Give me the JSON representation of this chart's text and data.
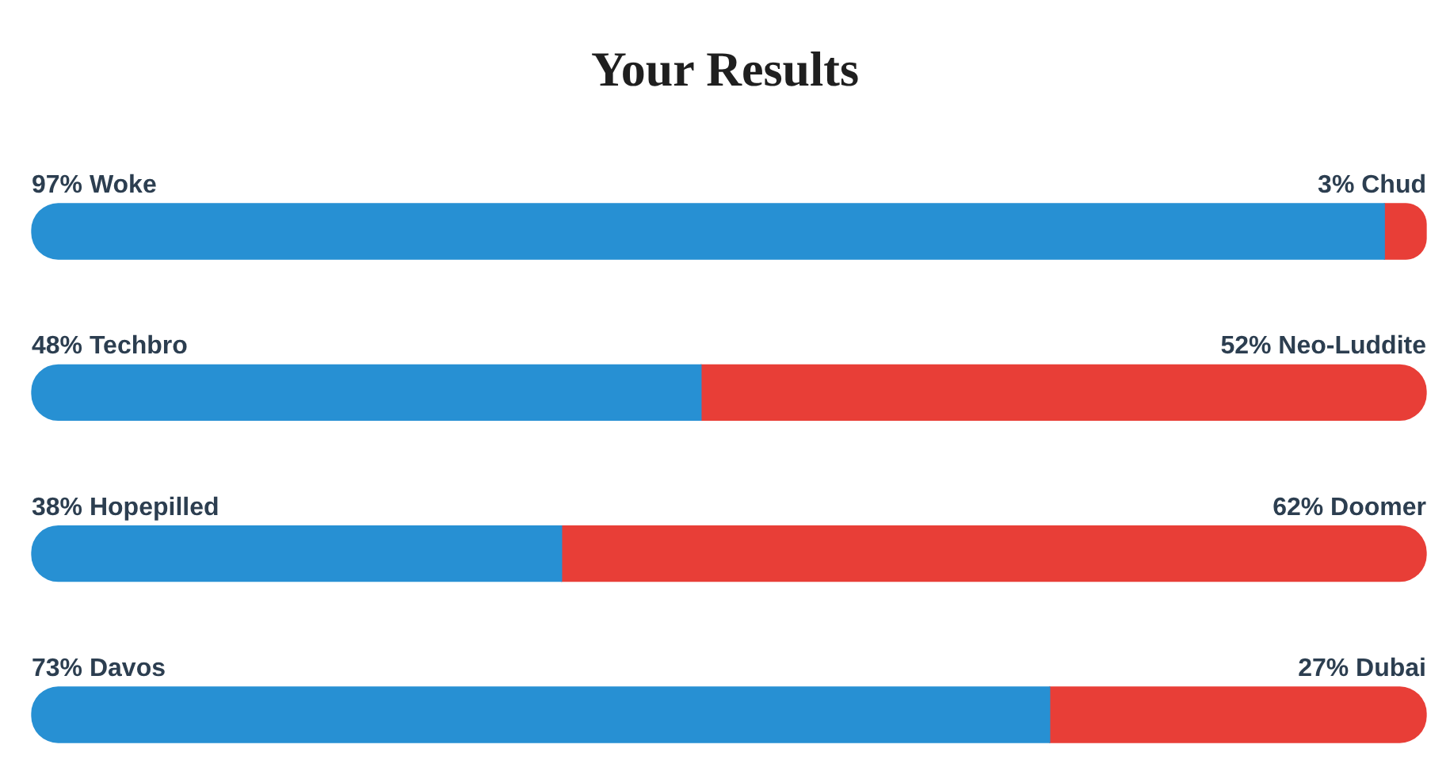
{
  "chart_data": {
    "type": "bar",
    "title": "Your Results",
    "orientation": "horizontal",
    "stacked": true,
    "categories": [
      null,
      null,
      null,
      null
    ],
    "series": [
      {
        "color": "#2790d3",
        "values": [
          97,
          48,
          38,
          73
        ],
        "value_labels": [
          "97% Woke",
          "48% Techbro",
          "38% Hopepilled",
          "73% Davos"
        ]
      },
      {
        "color": "#e83e37",
        "values": [
          3,
          52,
          62,
          27
        ],
        "value_labels": [
          "3% Chud",
          "52% Neo-Luddite",
          "62% Doomer",
          "27% Dubai"
        ]
      }
    ]
  }
}
